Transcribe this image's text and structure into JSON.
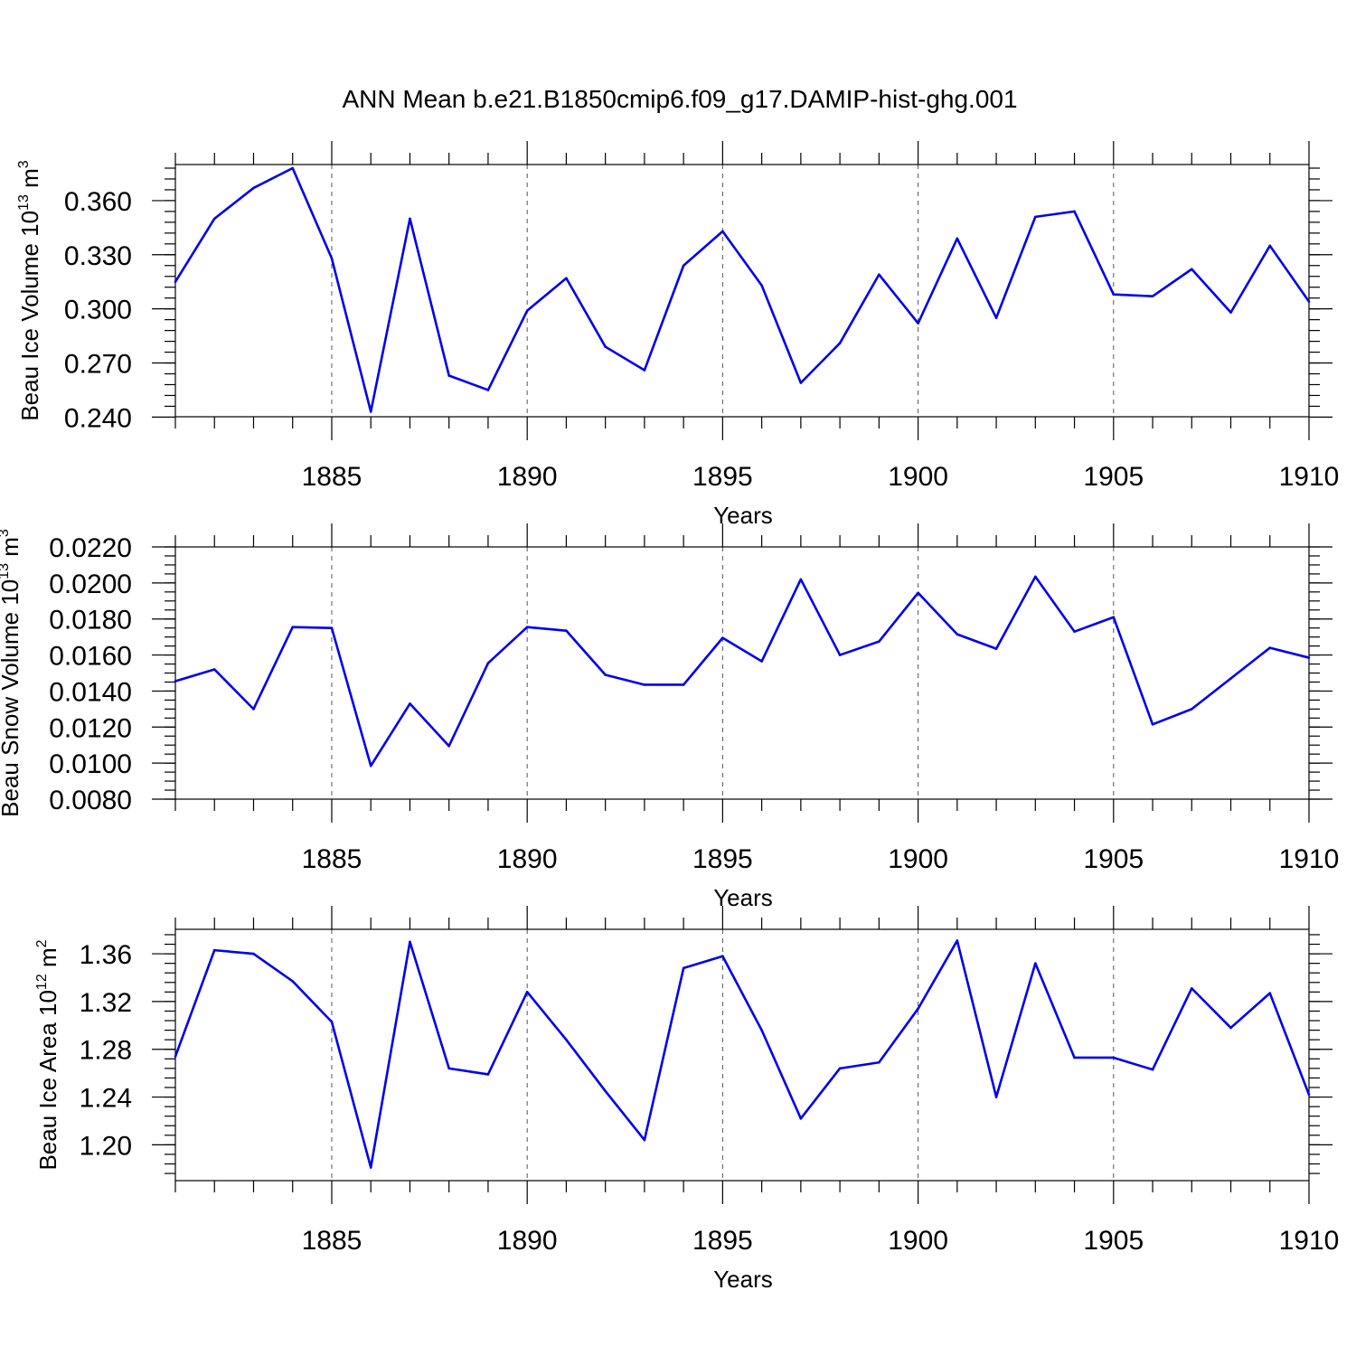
{
  "title": "ANN Mean b.e21.B1850cmip6.f09_g17.DAMIP-hist-ghg.001",
  "colors": {
    "line": "#0000ee",
    "frame": "#000000"
  },
  "chart_data": [
    {
      "type": "line",
      "ylabel_main": "Beau Ice Volume 10",
      "ylabel_sup": "13",
      "ylabel_unit": " m",
      "ylabel_unit_sup": "3",
      "xlabel": "Years",
      "xlim": [
        1881,
        1910
      ],
      "ylim": [
        0.2402,
        0.38
      ],
      "ytick_values": [
        0.24,
        0.27,
        0.3,
        0.33,
        0.36
      ],
      "ytick_labels": [
        "0.240",
        "0.270",
        "0.300",
        "0.330",
        "0.360"
      ],
      "yminor_step": 0.006,
      "xtick_values": [
        1885,
        1890,
        1895,
        1900,
        1905,
        1910
      ],
      "xtick_labels": [
        "1885",
        "1890",
        "1895",
        "1900",
        "1905",
        "1910"
      ],
      "x": [
        1881,
        1882,
        1883,
        1884,
        1885,
        1886,
        1887,
        1888,
        1889,
        1890,
        1891,
        1892,
        1893,
        1894,
        1895,
        1896,
        1897,
        1898,
        1899,
        1900,
        1901,
        1902,
        1903,
        1904,
        1905,
        1906,
        1907,
        1908,
        1909,
        1910
      ],
      "values": [
        0.315,
        0.35,
        0.367,
        0.378,
        0.328,
        0.243,
        0.35,
        0.263,
        0.255,
        0.299,
        0.317,
        0.279,
        0.266,
        0.324,
        0.343,
        0.313,
        0.259,
        0.281,
        0.319,
        0.292,
        0.339,
        0.295,
        0.351,
        0.354,
        0.308,
        0.307,
        0.322,
        0.298,
        0.335,
        0.304
      ]
    },
    {
      "type": "line",
      "ylabel_main": "Beau Snow Volume 10",
      "ylabel_sup": "13",
      "ylabel_unit": " m",
      "ylabel_unit_sup": "3",
      "xlabel": "Years",
      "xlim": [
        1881,
        1910
      ],
      "ylim": [
        0.008,
        0.022
      ],
      "ytick_values": [
        0.008,
        0.01,
        0.012,
        0.014,
        0.016,
        0.018,
        0.02,
        0.022
      ],
      "ytick_labels": [
        "0.0080",
        "0.0100",
        "0.0120",
        "0.0140",
        "0.0160",
        "0.0180",
        "0.0200",
        "0.0220"
      ],
      "yminor_step": 0.0005,
      "xtick_values": [
        1885,
        1890,
        1895,
        1900,
        1905,
        1910
      ],
      "xtick_labels": [
        "1885",
        "1890",
        "1895",
        "1900",
        "1905",
        "1910"
      ],
      "x": [
        1881,
        1882,
        1883,
        1884,
        1885,
        1886,
        1887,
        1888,
        1889,
        1890,
        1891,
        1892,
        1893,
        1894,
        1895,
        1896,
        1897,
        1898,
        1899,
        1900,
        1901,
        1902,
        1903,
        1904,
        1905,
        1906,
        1907,
        1908,
        1909,
        1910
      ],
      "values": [
        0.01455,
        0.0152,
        0.013,
        0.01755,
        0.0175,
        0.00985,
        0.0133,
        0.01095,
        0.01555,
        0.01755,
        0.01735,
        0.0149,
        0.01435,
        0.01435,
        0.01695,
        0.01565,
        0.0202,
        0.016,
        0.01675,
        0.01945,
        0.01715,
        0.01635,
        0.02035,
        0.0173,
        0.0181,
        0.01215,
        0.013,
        0.0147,
        0.0164,
        0.01585
      ]
    },
    {
      "type": "line",
      "ylabel_main": "Beau Ice Area 10",
      "ylabel_sup": "12",
      "ylabel_unit": " m",
      "ylabel_unit_sup": "2",
      "xlabel": "Years",
      "xlim": [
        1881,
        1910
      ],
      "ylim": [
        1.17,
        1.3805
      ],
      "ytick_values": [
        1.2,
        1.24,
        1.28,
        1.32,
        1.36
      ],
      "ytick_labels": [
        "1.20",
        "1.24",
        "1.28",
        "1.32",
        "1.36"
      ],
      "yminor_step": 0.008,
      "xtick_values": [
        1885,
        1890,
        1895,
        1900,
        1905,
        1910
      ],
      "xtick_labels": [
        "1885",
        "1890",
        "1895",
        "1900",
        "1905",
        "1910"
      ],
      "x": [
        1881,
        1882,
        1883,
        1884,
        1885,
        1886,
        1887,
        1888,
        1889,
        1890,
        1891,
        1892,
        1893,
        1894,
        1895,
        1896,
        1897,
        1898,
        1899,
        1900,
        1901,
        1902,
        1903,
        1904,
        1905,
        1906,
        1907,
        1908,
        1909,
        1910
      ],
      "values": [
        1.274,
        1.363,
        1.36,
        1.337,
        1.303,
        1.181,
        1.37,
        1.264,
        1.259,
        1.328,
        1.288,
        1.245,
        1.204,
        1.348,
        1.358,
        1.296,
        1.222,
        1.264,
        1.269,
        1.314,
        1.371,
        1.24,
        1.352,
        1.273,
        1.273,
        1.263,
        1.331,
        1.298,
        1.327,
        1.242
      ]
    }
  ]
}
